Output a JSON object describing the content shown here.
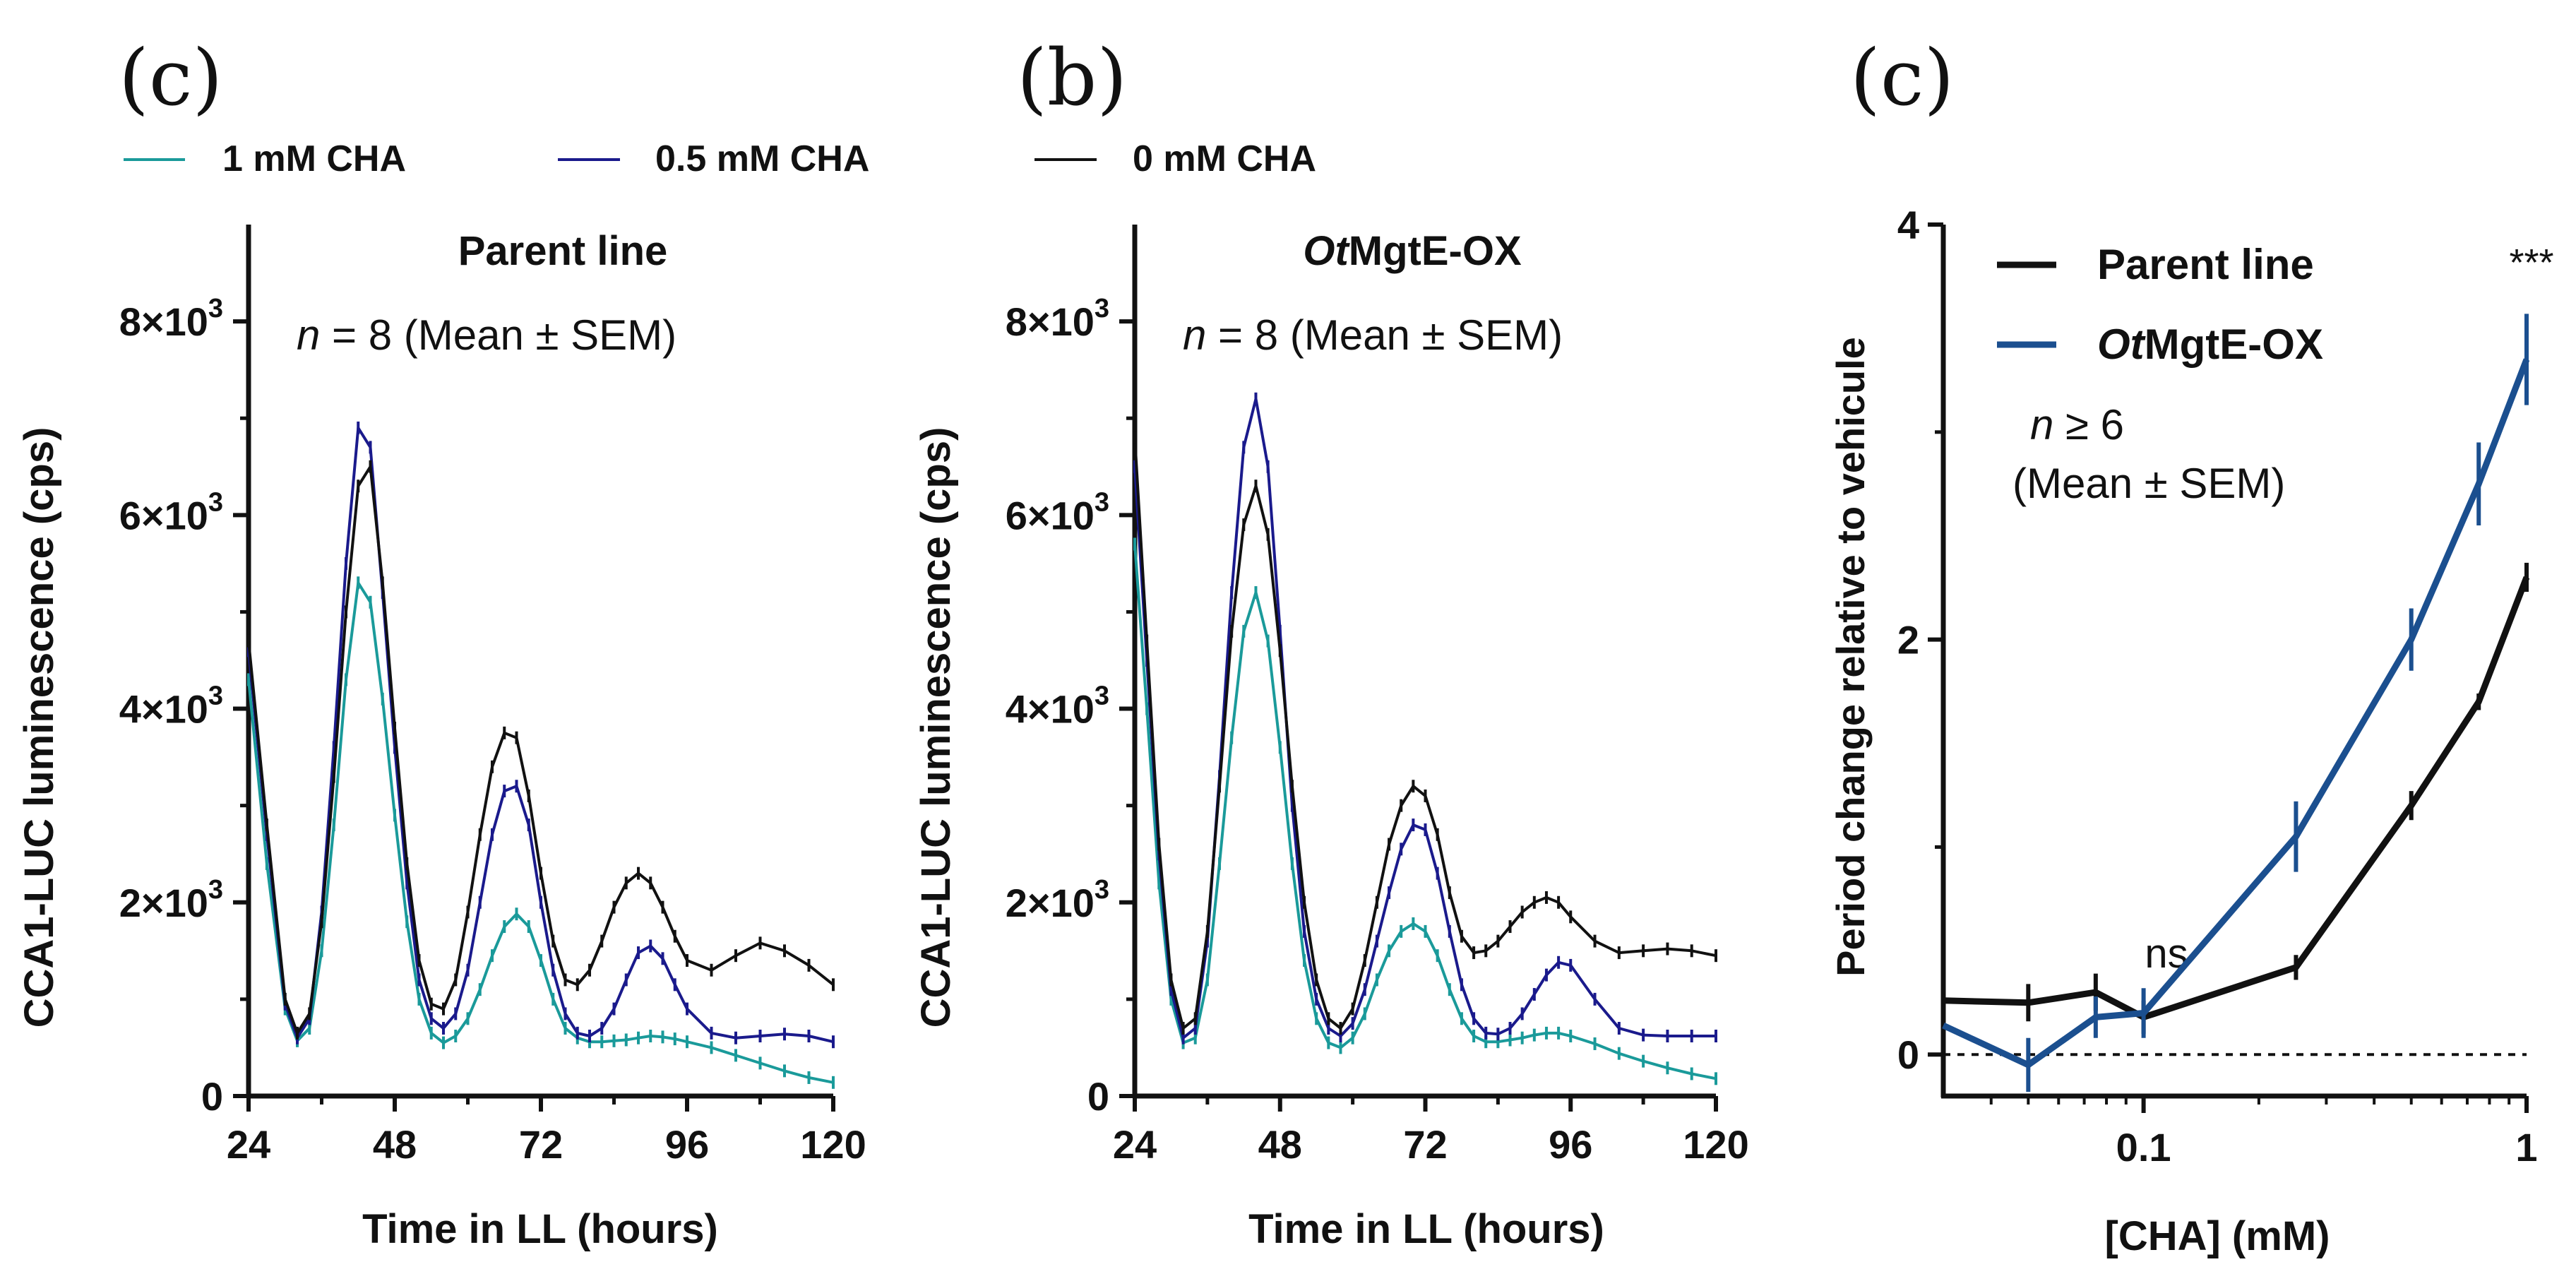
{
  "colors": {
    "one_mM": "#1a9a9a",
    "half_mM": "#1a1a8c",
    "zero_mM": "#111111",
    "parent": "#111111",
    "ox": "#1b4f8f"
  },
  "legend_top": {
    "one_mM": "1 mM CHA",
    "half_mM": "0.5 mM CHA",
    "zero_mM": "0 mM CHA"
  },
  "chart_data": [
    {
      "type": "line",
      "panel_label": "(c)",
      "title": "Parent line",
      "annotation": {
        "prefix": "n",
        "rest": " = 8 (Mean ± SEM)"
      },
      "xlabel": "Time in LL (hours)",
      "ylabel": "CCA1-LUC luminescence (cps)",
      "xlim": [
        24,
        120
      ],
      "ylim": [
        0,
        9000
      ],
      "xticks": [
        24,
        48,
        72,
        96,
        120
      ],
      "yticks": [
        0,
        2000,
        4000,
        6000,
        8000
      ],
      "ytick_labels": [
        {
          "base": "0",
          "exp": ""
        },
        {
          "base": "2×10",
          "exp": "3"
        },
        {
          "base": "4×10",
          "exp": "3"
        },
        {
          "base": "6×10",
          "exp": "3"
        },
        {
          "base": "8×10",
          "exp": "3"
        }
      ],
      "series": [
        {
          "name": "1 mM CHA",
          "color_key": "one_mM",
          "x": [
            24,
            27,
            30,
            32,
            34,
            36,
            38,
            40,
            42,
            44,
            46,
            48,
            50,
            52,
            54,
            56,
            58,
            60,
            62,
            64,
            66,
            68,
            70,
            72,
            74,
            76,
            78,
            80,
            82,
            84,
            86,
            88,
            90,
            92,
            94,
            96,
            100,
            104,
            108,
            112,
            116,
            120
          ],
          "y": [
            4300,
            2400,
            900,
            570,
            700,
            1500,
            2800,
            4300,
            5300,
            5100,
            4100,
            2900,
            1800,
            1000,
            650,
            550,
            620,
            800,
            1100,
            1450,
            1750,
            1880,
            1750,
            1400,
            1000,
            700,
            600,
            560,
            560,
            570,
            580,
            600,
            620,
            610,
            590,
            560,
            500,
            420,
            340,
            260,
            190,
            140
          ]
        },
        {
          "name": "0.5 mM CHA",
          "color_key": "half_mM",
          "x": [
            24,
            27,
            30,
            32,
            34,
            36,
            38,
            40,
            42,
            44,
            46,
            48,
            50,
            52,
            54,
            56,
            58,
            60,
            62,
            64,
            66,
            68,
            70,
            72,
            74,
            76,
            78,
            80,
            82,
            84,
            86,
            88,
            90,
            92,
            94,
            96,
            100,
            104,
            108,
            112,
            116,
            120
          ],
          "y": [
            4600,
            2700,
            950,
            600,
            800,
            1900,
            3600,
            5500,
            6900,
            6700,
            5200,
            3600,
            2200,
            1200,
            800,
            700,
            850,
            1300,
            2000,
            2700,
            3150,
            3200,
            2800,
            2000,
            1300,
            850,
            650,
            620,
            700,
            900,
            1200,
            1480,
            1550,
            1420,
            1150,
            900,
            650,
            600,
            620,
            640,
            620,
            560
          ]
        },
        {
          "name": "0 mM CHA",
          "color_key": "zero_mM",
          "x": [
            24,
            27,
            30,
            32,
            34,
            36,
            38,
            40,
            42,
            44,
            46,
            48,
            50,
            52,
            54,
            56,
            58,
            60,
            62,
            64,
            66,
            68,
            70,
            72,
            74,
            76,
            78,
            80,
            82,
            84,
            86,
            88,
            90,
            92,
            94,
            96,
            100,
            104,
            108,
            112,
            116,
            120
          ],
          "y": [
            4700,
            2800,
            1000,
            650,
            850,
            1800,
            3300,
            5000,
            6300,
            6500,
            5300,
            3800,
            2400,
            1400,
            950,
            900,
            1200,
            1900,
            2700,
            3400,
            3750,
            3700,
            3100,
            2300,
            1600,
            1200,
            1150,
            1300,
            1600,
            1950,
            2200,
            2300,
            2200,
            1950,
            1650,
            1400,
            1300,
            1450,
            1580,
            1500,
            1350,
            1150
          ]
        }
      ]
    },
    {
      "type": "line",
      "panel_label": "(b)",
      "title_italic": "Ot",
      "title_rest": "MgtE-OX",
      "annotation": {
        "prefix": "n",
        "rest": " = 8 (Mean ± SEM)"
      },
      "xlabel": "Time in LL (hours)",
      "ylabel": "CCA1-LUC luminescence (cps)",
      "xlim": [
        24,
        120
      ],
      "ylim": [
        0,
        9000
      ],
      "xticks": [
        24,
        48,
        72,
        96,
        120
      ],
      "yticks": [
        0,
        2000,
        4000,
        6000,
        8000
      ],
      "ytick_labels": [
        {
          "base": "0",
          "exp": ""
        },
        {
          "base": "2×10",
          "exp": "3"
        },
        {
          "base": "4×10",
          "exp": "3"
        },
        {
          "base": "6×10",
          "exp": "3"
        },
        {
          "base": "8×10",
          "exp": "3"
        }
      ],
      "series": [
        {
          "name": "1 mM CHA",
          "color_key": "one_mM",
          "x": [
            24,
            26,
            28,
            30,
            32,
            34,
            36,
            38,
            40,
            42,
            44,
            46,
            48,
            50,
            52,
            54,
            56,
            58,
            60,
            62,
            64,
            66,
            68,
            70,
            72,
            74,
            76,
            78,
            80,
            82,
            84,
            86,
            88,
            90,
            92,
            94,
            96,
            100,
            104,
            108,
            112,
            116,
            120
          ],
          "y": [
            5700,
            4000,
            2200,
            1000,
            550,
            600,
            1200,
            2400,
            3700,
            4800,
            5200,
            4700,
            3600,
            2400,
            1400,
            800,
            550,
            500,
            600,
            850,
            1200,
            1500,
            1700,
            1780,
            1700,
            1450,
            1100,
            800,
            620,
            560,
            560,
            580,
            600,
            630,
            650,
            650,
            620,
            540,
            440,
            360,
            290,
            230,
            180
          ]
        },
        {
          "name": "0.5 mM CHA",
          "color_key": "half_mM",
          "x": [
            24,
            26,
            28,
            30,
            32,
            34,
            36,
            38,
            40,
            42,
            44,
            46,
            48,
            50,
            52,
            54,
            56,
            58,
            60,
            62,
            64,
            66,
            68,
            70,
            72,
            74,
            76,
            78,
            80,
            82,
            84,
            86,
            88,
            90,
            92,
            94,
            96,
            100,
            104,
            108,
            112,
            116,
            120
          ],
          "y": [
            6500,
            4500,
            2500,
            1100,
            600,
            700,
            1600,
            3300,
            5200,
            6700,
            7200,
            6500,
            4800,
            3000,
            1700,
            1000,
            700,
            620,
            750,
            1100,
            1600,
            2100,
            2550,
            2800,
            2750,
            2300,
            1700,
            1150,
            800,
            650,
            640,
            700,
            850,
            1050,
            1250,
            1380,
            1350,
            1000,
            700,
            630,
            620,
            620,
            620
          ]
        },
        {
          "name": "0 mM CHA",
          "color_key": "zero_mM",
          "x": [
            24,
            26,
            28,
            30,
            32,
            34,
            36,
            38,
            40,
            42,
            44,
            46,
            48,
            50,
            52,
            54,
            56,
            58,
            60,
            62,
            64,
            66,
            68,
            70,
            72,
            74,
            76,
            78,
            80,
            82,
            84,
            86,
            88,
            90,
            92,
            94,
            96,
            100,
            104,
            108,
            112,
            116,
            120
          ],
          "y": [
            6800,
            4700,
            2600,
            1200,
            700,
            800,
            1700,
            3200,
            4800,
            5900,
            6300,
            5800,
            4600,
            3200,
            2000,
            1200,
            800,
            700,
            900,
            1400,
            2000,
            2600,
            3000,
            3200,
            3100,
            2700,
            2100,
            1650,
            1480,
            1500,
            1600,
            1750,
            1900,
            2000,
            2050,
            2000,
            1850,
            1600,
            1480,
            1500,
            1520,
            1500,
            1450
          ]
        }
      ]
    },
    {
      "type": "line",
      "panel_label": "(c)",
      "xscale": "log",
      "xlabel": "[CHA] (mM)",
      "ylabel": "Period change relative to vehicule",
      "xlim": [
        0.03,
        1
      ],
      "ylim": [
        -0.2,
        4
      ],
      "xticks": [
        0.1,
        1
      ],
      "xtick_labels": [
        "0.1",
        "1"
      ],
      "yticks": [
        0,
        2,
        4
      ],
      "ytick_labels": [
        "0",
        "2",
        "4"
      ],
      "reference_line_y": 0,
      "legend": [
        {
          "name": "Parent line",
          "color_key": "parent"
        },
        {
          "name_italic": "Ot",
          "name_rest": "MgtE-OX",
          "color_key": "ox"
        }
      ],
      "annotation_n": {
        "prefix": "n",
        "rest": " ≥ 6"
      },
      "annotation_stats": "(Mean ± SEM)",
      "ns_label": "ns",
      "sig_label": "***",
      "series": [
        {
          "name": "Parent line",
          "color_key": "parent",
          "x": [
            0.03,
            0.05,
            0.075,
            0.1,
            0.25,
            0.5,
            0.75,
            1
          ],
          "y": [
            0.26,
            0.25,
            0.3,
            0.18,
            0.42,
            1.2,
            1.7,
            2.3
          ],
          "err": [
            0,
            0.09,
            0.09,
            0.08,
            0.06,
            0.07,
            0.04,
            0.07
          ]
        },
        {
          "name": "OtMgtE-OX",
          "color_key": "ox",
          "x": [
            0.03,
            0.05,
            0.075,
            0.1,
            0.25,
            0.5,
            0.75,
            1
          ],
          "y": [
            0.14,
            -0.05,
            0.18,
            0.2,
            1.05,
            2.0,
            2.75,
            3.35
          ],
          "err": [
            0,
            0.13,
            0.1,
            0.12,
            0.17,
            0.15,
            0.2,
            0.22
          ]
        }
      ]
    }
  ]
}
